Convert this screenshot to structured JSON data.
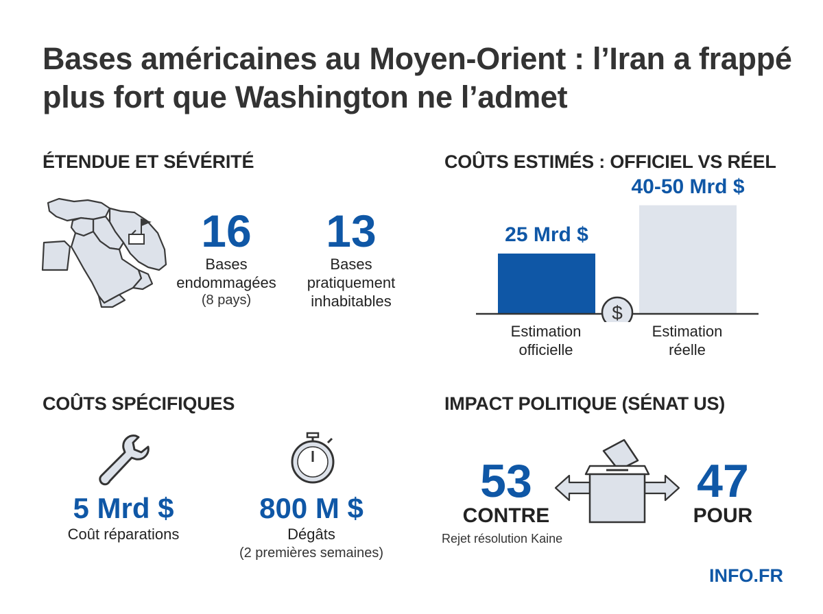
{
  "title": "Bases américaines au Moyen-Orient : l’Iran a frappé plus fort que Washington ne l’admet",
  "sections": {
    "extent": {
      "heading": "ÉTENDUE ET SÉVÉRITÉ",
      "map_icon": "middle-east-map-icon",
      "stats": [
        {
          "value": "16",
          "label_lines": [
            "Bases",
            "endommagées"
          ],
          "sub": "(8 pays)"
        },
        {
          "value": "13",
          "label_lines": [
            "Bases",
            "pratiquement",
            "inhabitables"
          ]
        }
      ]
    },
    "costs": {
      "heading": "COÛTS ESTIMÉS : OFFICIEL VS RÉEL",
      "icon": "dollar-coin-icon"
    },
    "specific": {
      "heading": "COÛTS SPÉCIFIQUES",
      "items": [
        {
          "icon": "wrench-icon",
          "value": "5 Mrd $",
          "label": "Coût réparations"
        },
        {
          "icon": "stopwatch-icon",
          "value": "800 M $",
          "label": "Dégâts",
          "sub": "(2 premières semaines)"
        }
      ]
    },
    "politics": {
      "heading": "IMPACT POLITIQUE (SÉNAT US)",
      "icon": "ballot-box-icon",
      "against": {
        "value": "53",
        "label": "CONTRE"
      },
      "for": {
        "value": "47",
        "label": "POUR"
      },
      "note": "Rejet résolution Kaine"
    }
  },
  "chart_data": {
    "type": "bar",
    "categories": [
      "Estimation officielle",
      "Estimation réelle"
    ],
    "category_lines": [
      [
        "Estimation",
        "officielle"
      ],
      [
        "Estimation",
        "réelle"
      ]
    ],
    "values": [
      25,
      45
    ],
    "value_labels": [
      "25 Mrd $",
      "40-50 Mrd $"
    ],
    "range_high": 50,
    "ylim": [
      0,
      50
    ],
    "colors": [
      "#0f57a6",
      "#dfe4ec"
    ],
    "title": "",
    "xlabel": "",
    "ylabel": ""
  },
  "brand": "INFO.FR"
}
